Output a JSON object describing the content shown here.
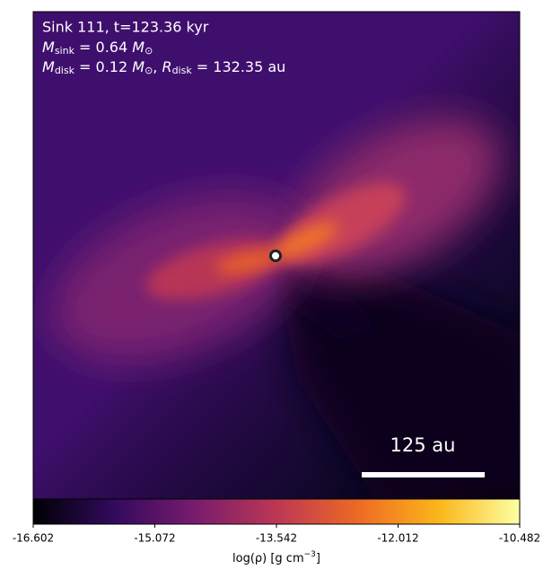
{
  "chart_data": {
    "type": "image",
    "title": "Sink 111, t=123.36 kyr",
    "sink_mass": {
      "symbol": "M",
      "subscript": "sink",
      "text": " = 0.64 ",
      "unit": "M",
      "unit_subscript": "⊙"
    },
    "disk": {
      "symbol": "M",
      "subscript": "disk",
      "text": " = 0.12 ",
      "unit": "M",
      "unit_subscript": "⊙",
      "sep": ", ",
      "symbol2": "R",
      "subscript2": "disk",
      "text2": " = 132.35 au"
    },
    "scale_bar_label": "125 au",
    "colorbar": {
      "label_main": "log(ρ) [g cm",
      "label_sup": "−3",
      "label_end": "]",
      "lim": [
        -16.602,
        -10.482
      ],
      "ticks": [
        -16.602,
        -15.072,
        -13.542,
        -12.012,
        -10.482
      ],
      "colors": [
        "#000004",
        "#320a5e",
        "#781c6d",
        "#bc3754",
        "#ed6925",
        "#fbb61a",
        "#fcffa4"
      ]
    }
  }
}
